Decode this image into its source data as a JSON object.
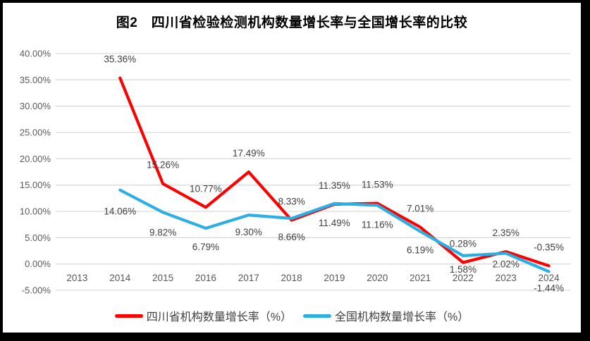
{
  "chart_data": {
    "type": "line",
    "title": "图2　四川省检验检测机构数量增长率与全国增长率的比较",
    "categories": [
      "2013",
      "2014",
      "2015",
      "2016",
      "2017",
      "2018",
      "2019",
      "2020",
      "2021",
      "2022",
      "2023",
      "2024"
    ],
    "series": [
      {
        "name": "四川省机构数量增长率（%）",
        "color": "#FF0000",
        "label_position": "above",
        "values": [
          null,
          35.36,
          15.26,
          10.77,
          17.49,
          8.33,
          11.35,
          11.53,
          7.01,
          0.28,
          2.35,
          -0.35
        ]
      },
      {
        "name": "全国机构数量增长率（%）",
        "color": "#2BAFE4",
        "label_position": "below",
        "label_offsets": [
          null,
          35,
          33,
          31,
          29,
          31,
          32,
          32,
          31,
          24,
          20,
          28
        ],
        "values": [
          null,
          14.06,
          9.82,
          6.79,
          9.3,
          8.66,
          11.49,
          11.16,
          6.19,
          1.58,
          2.02,
          -1.44
        ]
      }
    ],
    "ylim": [
      -5,
      40
    ],
    "yticks": [
      40,
      35,
      30,
      25,
      20,
      15,
      10,
      5,
      0,
      -5
    ],
    "ytick_labels": [
      "40.00%",
      "35.00%",
      "30.00%",
      "25.00%",
      "20.00%",
      "15.00%",
      "10.00%",
      "5.00%",
      "0.00%",
      "-5.00%"
    ],
    "grid": true,
    "legend_position": "bottom",
    "colors": {
      "gridline": "#D9D9D9",
      "axis_text": "#595959",
      "data_label_text": "#404040",
      "frame_border": "#000000"
    }
  }
}
